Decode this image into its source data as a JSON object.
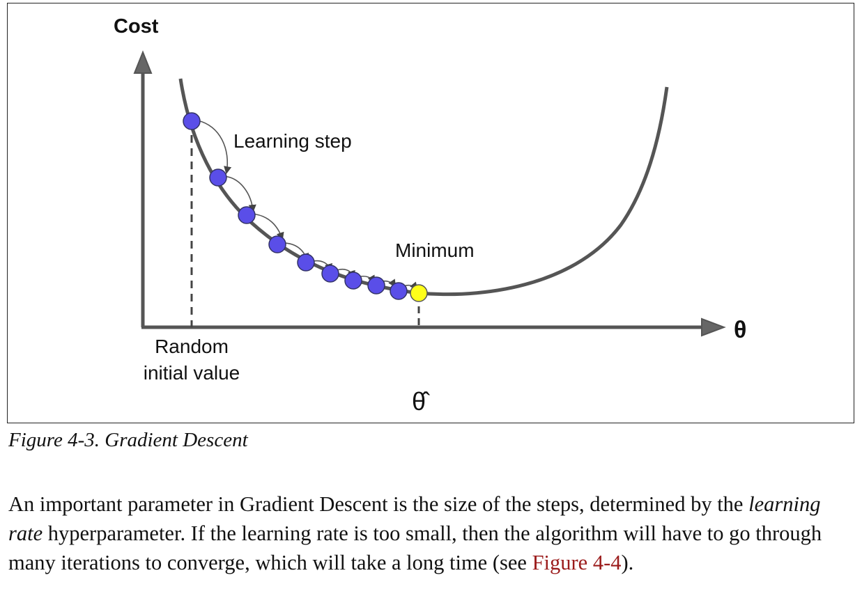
{
  "figure": {
    "y_axis_label": "Cost",
    "x_axis_label": "θ",
    "annotations": {
      "learning_step": "Learning step",
      "minimum": "Minimum",
      "random_initial_line1": "Random",
      "random_initial_line2": "initial value",
      "theta_hat": "θ̂"
    },
    "colors": {
      "curve": "#555555",
      "step_point": "#5a4ee8",
      "minimum_point": "#ffff1a",
      "point_stroke": "#333366"
    }
  },
  "caption": "Figure 4-3. Gradient Descent",
  "paragraph": {
    "part1": "An important parameter in Gradient Descent is the size of the steps, determined by the ",
    "emphasis": "learning rate",
    "part2": " hyperparameter. If the learning rate is too small, then the algorithm will have to go through many iterations to converge, which will take a long time (see ",
    "link_text": "Figure 4-4",
    "part3": ")."
  }
}
